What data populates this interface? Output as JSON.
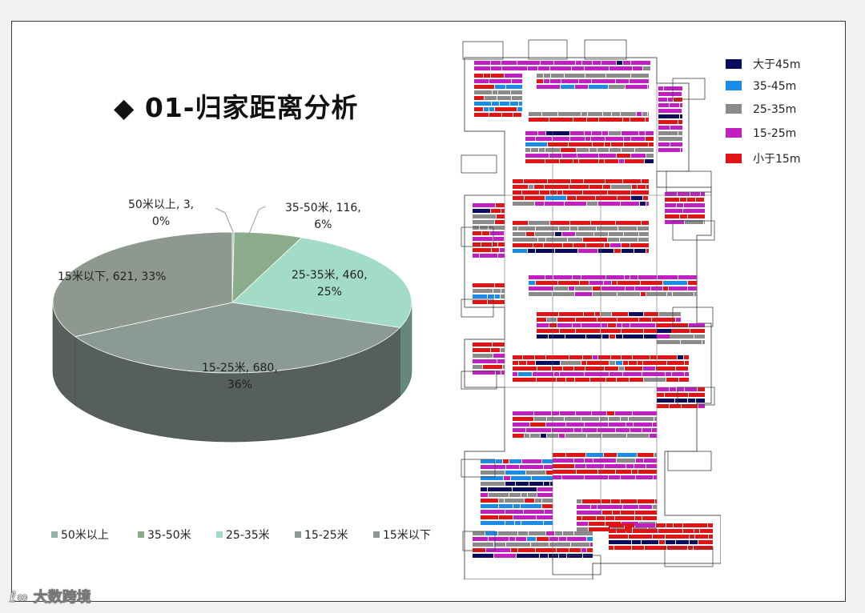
{
  "page": {
    "title": "◆ 01-归家距离分析"
  },
  "chart_data": {
    "type": "pie",
    "title": "01-归家距离分析",
    "categories": [
      "50米以上",
      "35-50米",
      "25-35米",
      "15-25米",
      "15米以下"
    ],
    "values": [
      3,
      116,
      460,
      680,
      621
    ],
    "percents": [
      "0%",
      "6%",
      "25%",
      "36%",
      "33%"
    ],
    "labels": [
      "50米以上, 3,",
      "35-50米, 116,",
      "25-35米, 460,",
      "15-25米, 680,",
      "15米以下, 621, 33%"
    ],
    "colors": [
      "#8fb5a8",
      "#8cad8c",
      "#a2dcc6",
      "#8b9a93",
      "#8e9890"
    ],
    "legend_position": "bottom"
  },
  "map_legend": [
    {
      "label": "大于45m",
      "color": "#0b0b5e"
    },
    {
      "label": "35-45m",
      "color": "#1a8be6"
    },
    {
      "label": "25-35m",
      "color": "#8a8a8a"
    },
    {
      "label": "15-25m",
      "color": "#c21fc2"
    },
    {
      "label": "小于15m",
      "color": "#e01414"
    }
  ],
  "watermark": "大数跨境"
}
